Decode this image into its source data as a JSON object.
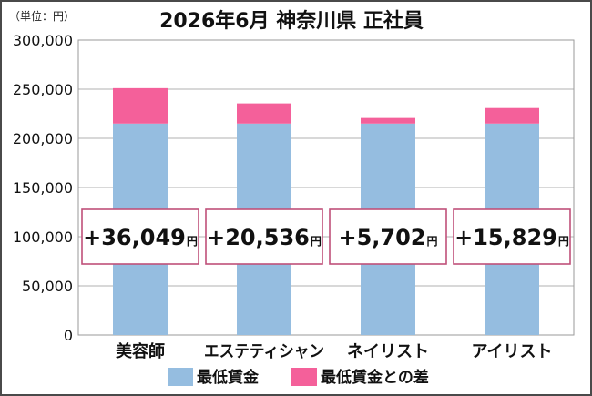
{
  "chart_data": {
    "type": "bar",
    "stacked": true,
    "title": "2026年6月 神奈川県 正社員",
    "unit_label": "（単位：円）",
    "categories": [
      "美容師",
      "エステティシャン",
      "ネイリスト",
      "アイリスト"
    ],
    "series": [
      {
        "name": "最低賃金",
        "color": "#95bde0",
        "values": [
          215000,
          215000,
          215000,
          215000
        ]
      },
      {
        "name": "最低賃金との差",
        "color": "#f4609a",
        "values": [
          36049,
          20536,
          5702,
          15829
        ]
      }
    ],
    "annotations": [
      {
        "value": "+36,049",
        "unit": "円"
      },
      {
        "value": "+20,536",
        "unit": "円"
      },
      {
        "value": "+5,702",
        "unit": "円"
      },
      {
        "value": "+15,829",
        "unit": "円"
      }
    ],
    "yticks": [
      "0",
      "50,000",
      "100,000",
      "150,000",
      "200,000",
      "250,000",
      "300,000"
    ],
    "ylim": [
      0,
      300000
    ],
    "grid": true,
    "legend_position": "bottom",
    "annotation_border_color": "#c0507a"
  }
}
